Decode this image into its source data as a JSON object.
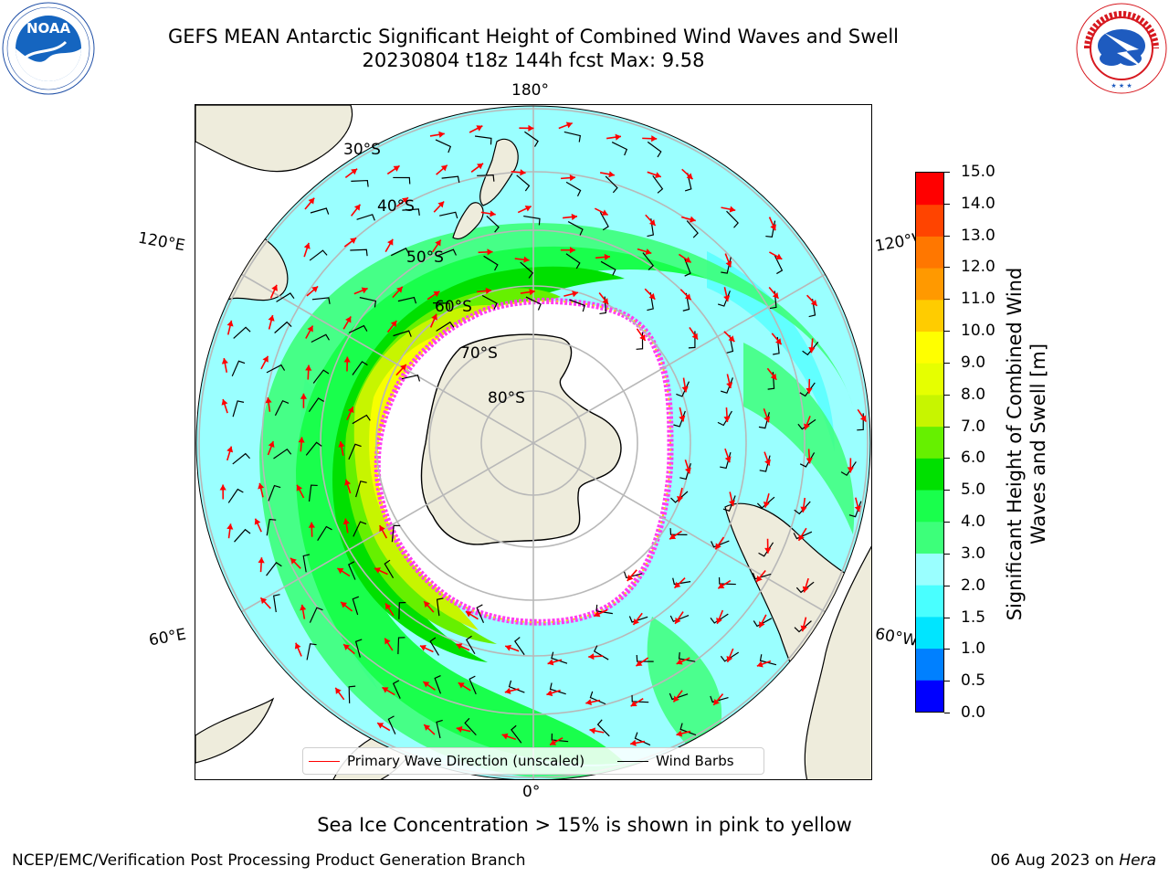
{
  "title": {
    "line1": "GEFS MEAN Antarctic Significant Height of Combined Wind Waves and Swell",
    "line2": "20230804 t18z 144h fcst   Max: 9.58"
  },
  "map": {
    "projection": "south-polar-stereographic",
    "longitude_labels": {
      "top": "180°",
      "bottom": "0°",
      "upper_left": "120°E",
      "upper_right": "120°W",
      "lower_left": "60°E",
      "lower_right": "60°W"
    },
    "latitude_labels": [
      "30°S",
      "40°S",
      "50°S",
      "60°S",
      "70°S",
      "80°S"
    ],
    "ocean_color": "#9affff",
    "land_color": "#eeecdc",
    "ice_color": "#ffffff",
    "ice_edge_colors": [
      "#ff3cf0",
      "#ffd700"
    ]
  },
  "colorbar": {
    "label": "Significant Height of Combined Wind Waves and Swell [m]",
    "levels": [
      "0.0",
      "0.5",
      "1.0",
      "1.5",
      "2.0",
      "3.0",
      "4.0",
      "5.0",
      "6.0",
      "7.0",
      "8.0",
      "9.0",
      "10.0",
      "11.0",
      "12.0",
      "13.0",
      "14.0",
      "15.0"
    ],
    "colors": [
      "#0000ff",
      "#0080ff",
      "#00e5ff",
      "#49ffff",
      "#9affff",
      "#3dff7a",
      "#19ff4c",
      "#00e000",
      "#66f000",
      "#c7f500",
      "#e6ff00",
      "#ffff00",
      "#ffcc00",
      "#ff9900",
      "#ff7700",
      "#ff4400",
      "#ff0000"
    ]
  },
  "legend": {
    "primary_wave": "Primary Wave Direction (unscaled)",
    "wind_barbs": "Wind Barbs",
    "primary_wave_color": "#ff0000",
    "wind_barbs_color": "#000000"
  },
  "caption": "Sea Ice Concentration > 15% is shown in pink to yellow",
  "footer": {
    "left": "NCEP/EMC/Verification Post Processing Product Generation Branch",
    "right_date": "06 Aug 2023 on ",
    "right_host": "Hera"
  },
  "logos": {
    "noaa": "NOAA",
    "nws_text": "NATIONAL WEATHER SERVICE"
  }
}
